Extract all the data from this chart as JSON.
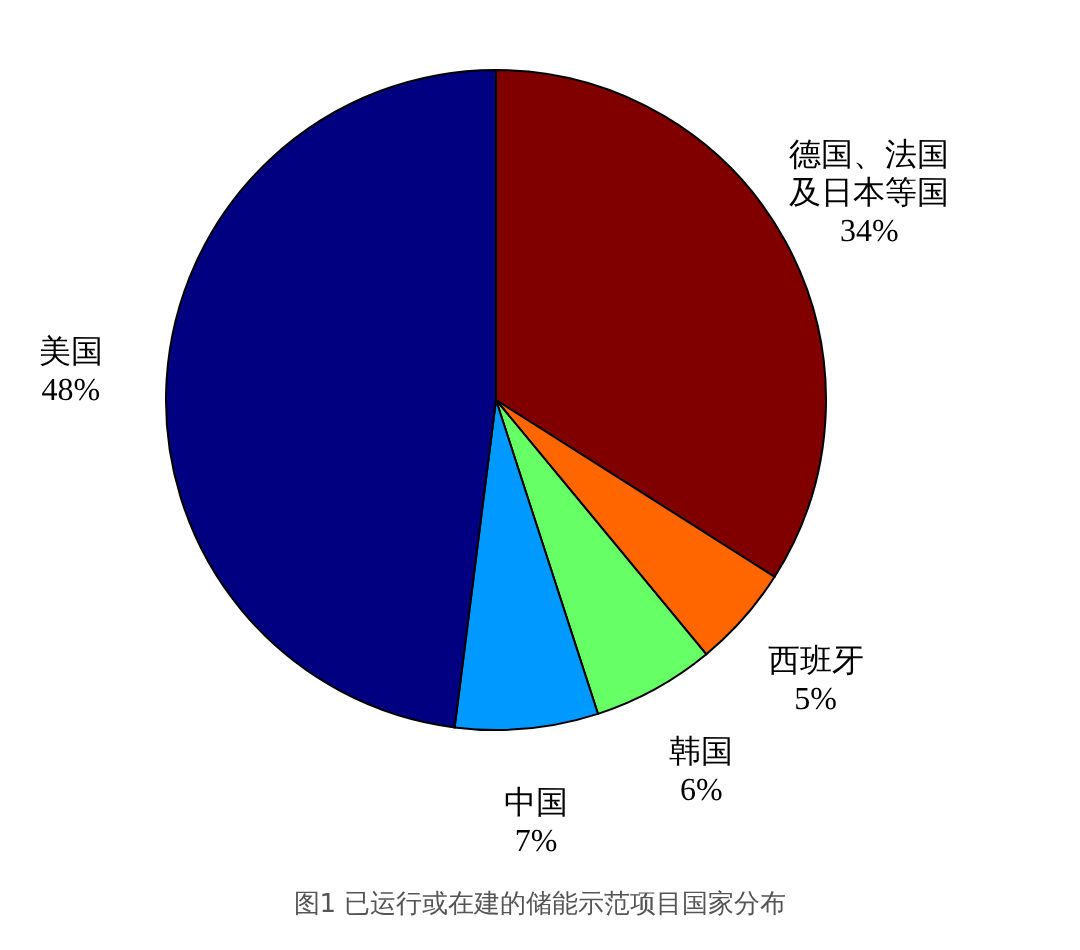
{
  "chart_data": {
    "type": "pie",
    "title": "图1 已运行或在建的储能示范项目国家分布",
    "categories": [
      "德国、法国及日本等国",
      "西班牙",
      "韩国",
      "中国",
      "美国"
    ],
    "values": [
      34,
      5,
      6,
      7,
      48
    ],
    "colors": [
      "#800000",
      "#ff6600",
      "#66ff66",
      "#0099ff",
      "#000080"
    ],
    "value_labels": [
      "34%",
      "5%",
      "6%",
      "7%",
      "48%"
    ]
  }
}
